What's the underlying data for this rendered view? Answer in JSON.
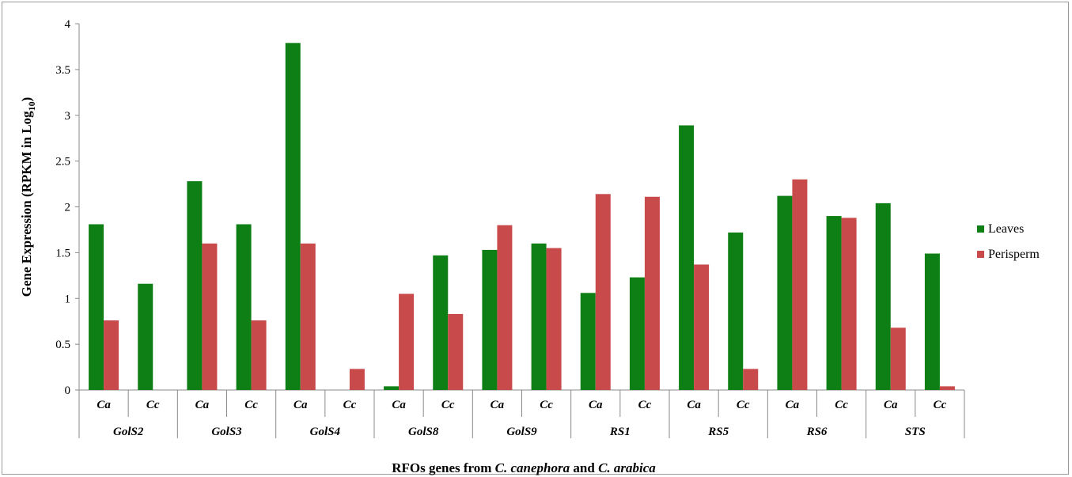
{
  "chart_data": {
    "type": "bar",
    "ylabel": "Gene Expression  (RPKM  in Log",
    "ylabel_sub": "10",
    "ylabel_end": ")",
    "xlabel_parts": [
      {
        "text": "RFOs genes from ",
        "italic": false
      },
      {
        "text": "C. canephora",
        "italic": true
      },
      {
        "text": " and ",
        "italic": false
      },
      {
        "text": "C. arabica",
        "italic": true
      }
    ],
    "ylim": [
      0,
      4
    ],
    "yticks": [
      "0",
      "0.5",
      "1",
      "1.5",
      "2",
      "2.5",
      "3",
      "3.5",
      "4"
    ],
    "ytick_values": [
      0,
      0.5,
      1,
      1.5,
      2,
      2.5,
      3,
      3.5,
      4
    ],
    "groups": [
      "GolS2",
      "GolS3",
      "GolS4",
      "GolS8",
      "GolS9",
      "RS1",
      "RS5",
      "RS6",
      "STS"
    ],
    "categories": [
      "Ca",
      "Cc",
      "Ca",
      "Cc",
      "Ca",
      "Cc",
      "Ca",
      "Cc",
      "Ca",
      "Cc",
      "Ca",
      "Cc",
      "Ca",
      "Cc",
      "Ca",
      "Cc",
      "Ca",
      "Cc"
    ],
    "series": [
      {
        "name": "Leaves",
        "color": "#0e7f14",
        "values": [
          1.81,
          1.16,
          2.28,
          1.81,
          3.79,
          0,
          0.04,
          1.47,
          1.53,
          1.6,
          1.06,
          1.23,
          2.89,
          1.72,
          2.12,
          1.9,
          2.04,
          1.49
        ]
      },
      {
        "name": "Perisperm",
        "color": "#c94a4a",
        "values": [
          0.76,
          0,
          1.6,
          0.76,
          1.6,
          0.23,
          1.05,
          0.83,
          1.8,
          1.55,
          2.14,
          2.11,
          1.37,
          0.23,
          2.3,
          1.88,
          0.68,
          0.04
        ]
      }
    ],
    "legend_position": "right",
    "grid": false
  }
}
